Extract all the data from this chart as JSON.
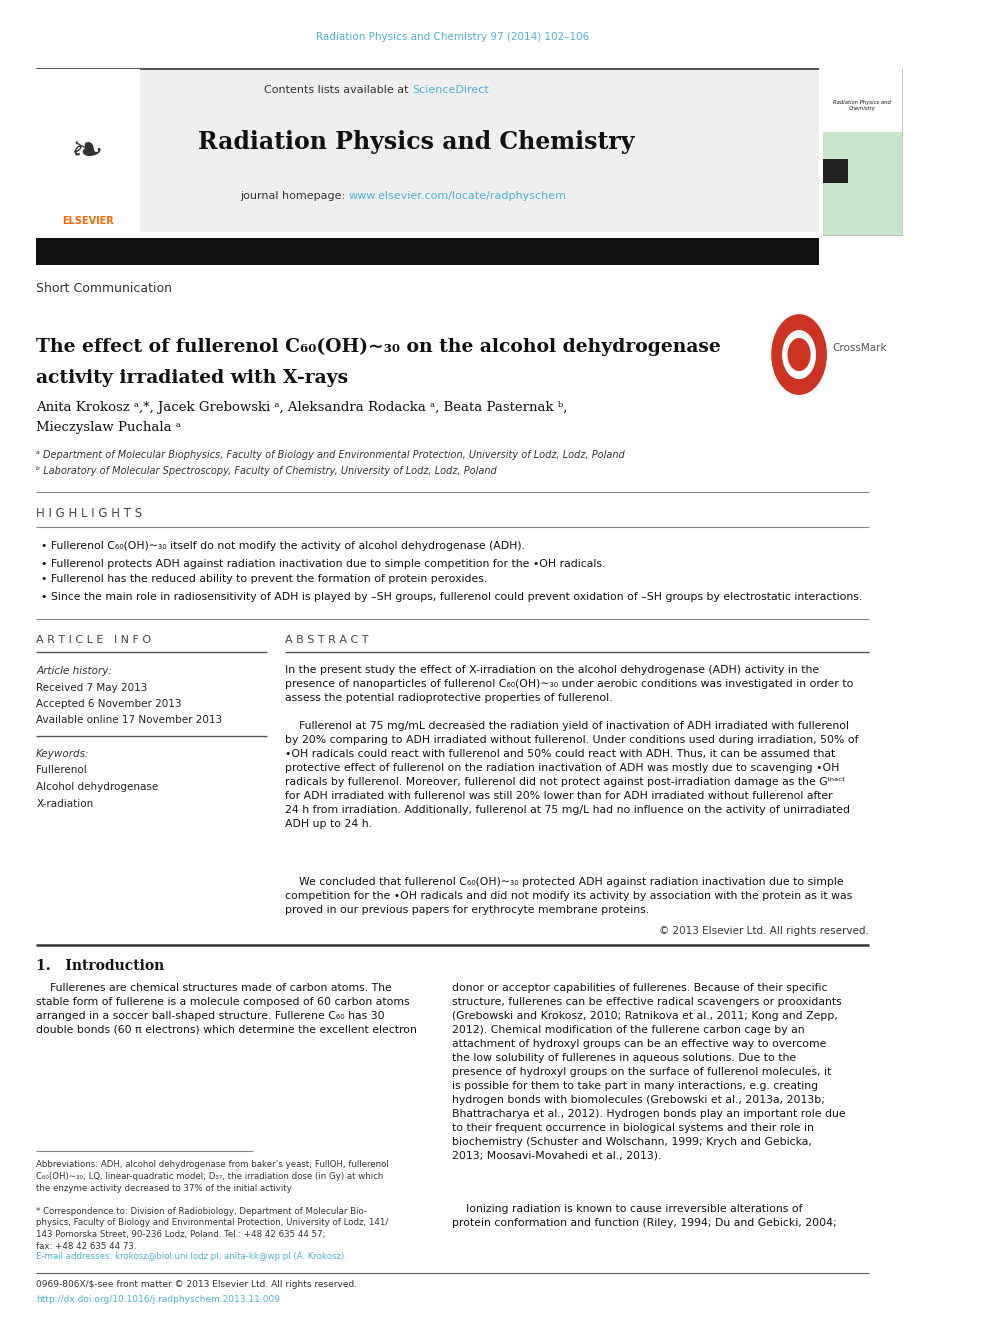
{
  "page_width": 9.92,
  "page_height": 13.23,
  "bg_color": "#ffffff",
  "journal_ref": "Radiation Physics and Chemistry 97 (2014) 102–106",
  "journal_ref_color": "#4db3d4",
  "header_bg": "#efefef",
  "sciencedirect_color": "#4db3d4",
  "journal_title": "Radiation Physics and Chemistry",
  "journal_url": "www.elsevier.com/locate/radphyschem",
  "journal_url_color": "#4db3d4",
  "article_type": "Short Communication",
  "affil_a": "ᵃ Department of Molecular Biophysics, Faculty of Biology and Environmental Protection, University of Lodz, Lodz, Poland",
  "affil_b": "ᵇ Laboratory of Molecular Spectroscopy, Faculty of Chemistry, University of Lodz, Lodz, Poland",
  "highlights_title": "H I G H L I G H T S",
  "highlights": [
    "Fullerenol C₆₀(OH)∼₃₀ itself do not modify the activity of alcohol dehydrogenase (ADH).",
    "Fullerenol protects ADH against radiation inactivation due to simple competition for the •OH radicals.",
    "Fullerenol has the reduced ability to prevent the formation of protein peroxides.",
    "Since the main role in radiosensitivity of ADH is played by –SH groups, fullerenol could prevent oxidation of –SH groups by electrostatic interactions."
  ],
  "article_info_title": "A R T I C L E   I N F O",
  "article_history_label": "Article history:",
  "received": "Received 7 May 2013",
  "accepted": "Accepted 6 November 2013",
  "available": "Available online 17 November 2013",
  "keywords_label": "Keywords:",
  "keywords": [
    "Fullerenol",
    "Alcohol dehydrogenase",
    "X-radiation"
  ],
  "abstract_title": "A B S T R A C T",
  "copyright": "© 2013 Elsevier Ltd. All rights reserved.",
  "intro_title": "1.   Introduction",
  "bottom_ref": "0969-806X/$-see front matter © 2013 Elsevier Ltd. All rights reserved.",
  "bottom_doi": "http://dx.doi.org/10.1016/j.radphyschem.2013.11.009"
}
